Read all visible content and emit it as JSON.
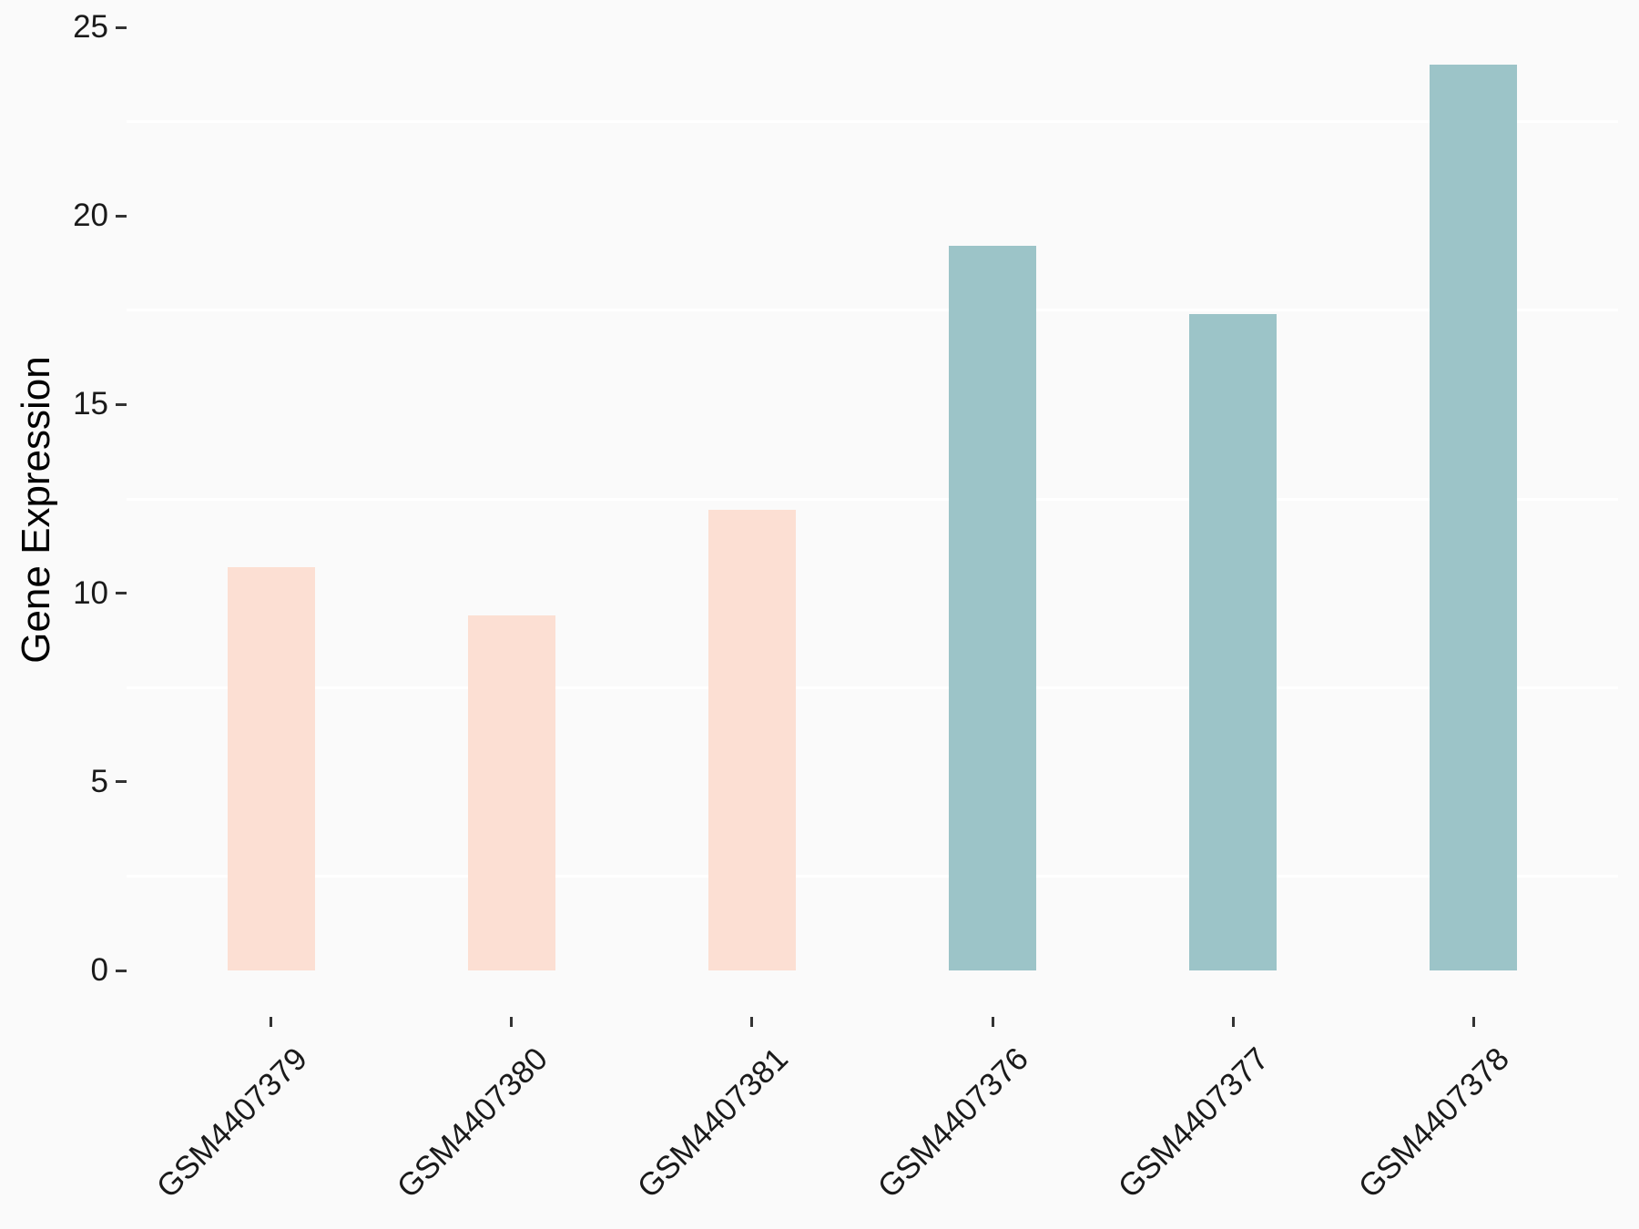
{
  "chart_data": {
    "type": "bar",
    "title": "",
    "xlabel": "",
    "ylabel": "Gene Expression",
    "categories": [
      "GSM4407379",
      "GSM4407380",
      "GSM4407381",
      "GSM4407376",
      "GSM4407377",
      "GSM4407378"
    ],
    "values": [
      10.7,
      9.4,
      12.2,
      19.2,
      17.4,
      24.0
    ],
    "bar_colors": [
      "#fcdfd3",
      "#fcdfd3",
      "#fcdfd3",
      "#9cc4c8",
      "#9cc4c8",
      "#9cc4c8"
    ],
    "color_groups": {
      "salmon": "#fcdfd3",
      "teal": "#9cc4c8"
    },
    "ylim": [
      0,
      25
    ],
    "yticks": [
      0,
      5,
      10,
      15,
      20,
      25
    ],
    "minor_gridlines": [
      2.5,
      7.5,
      12.5,
      17.5,
      22.5
    ],
    "grid": "minor-horizontal-only",
    "legend": "none",
    "x_label_angle": 45,
    "background_color": "#fafafa",
    "gridline_color": "#ffffff",
    "tick_color": "#333333",
    "axis_text_color": "#1a1a1a"
  }
}
